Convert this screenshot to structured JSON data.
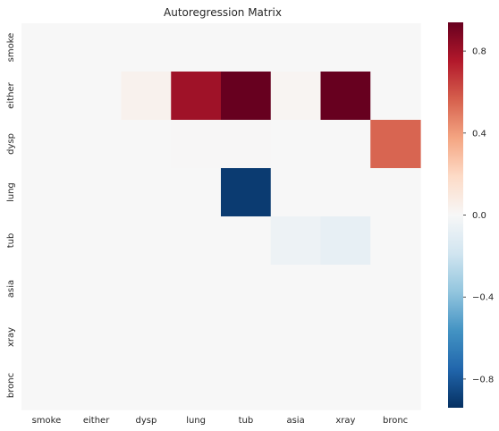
{
  "chart_data": {
    "type": "heatmap",
    "title": "Autoregression Matrix",
    "rows": [
      "smoke",
      "either",
      "dysp",
      "lung",
      "tub",
      "asia",
      "xray",
      "bronc"
    ],
    "cols": [
      "smoke",
      "either",
      "dysp",
      "lung",
      "tub",
      "asia",
      "xray",
      "bronc"
    ],
    "values": [
      [
        0,
        0,
        0,
        0,
        0,
        0,
        0,
        0
      ],
      [
        0,
        0,
        0.04,
        0.8,
        0.94,
        0.02,
        0.94,
        0
      ],
      [
        0,
        0,
        0,
        0.005,
        0.005,
        0,
        0,
        0.55
      ],
      [
        0,
        0,
        0,
        0,
        -0.9,
        0,
        0,
        0
      ],
      [
        0,
        0,
        0,
        0,
        0,
        -0.05,
        -0.08,
        0
      ],
      [
        0,
        0,
        0,
        0,
        0,
        0,
        0,
        0
      ],
      [
        0,
        0,
        0,
        0,
        0,
        0,
        0,
        0
      ],
      [
        0,
        0,
        0,
        0,
        0,
        0,
        0,
        0
      ]
    ],
    "colormap": "RdBu_r",
    "vmin": -0.94,
    "vmax": 0.94,
    "colorbar_ticks": [
      0.8,
      0.4,
      0.0,
      -0.4,
      -0.8
    ],
    "colorbar_tick_labels": [
      "0.8",
      "0.4",
      "0.0",
      "−0.4",
      "−0.8"
    ],
    "grid": false
  }
}
